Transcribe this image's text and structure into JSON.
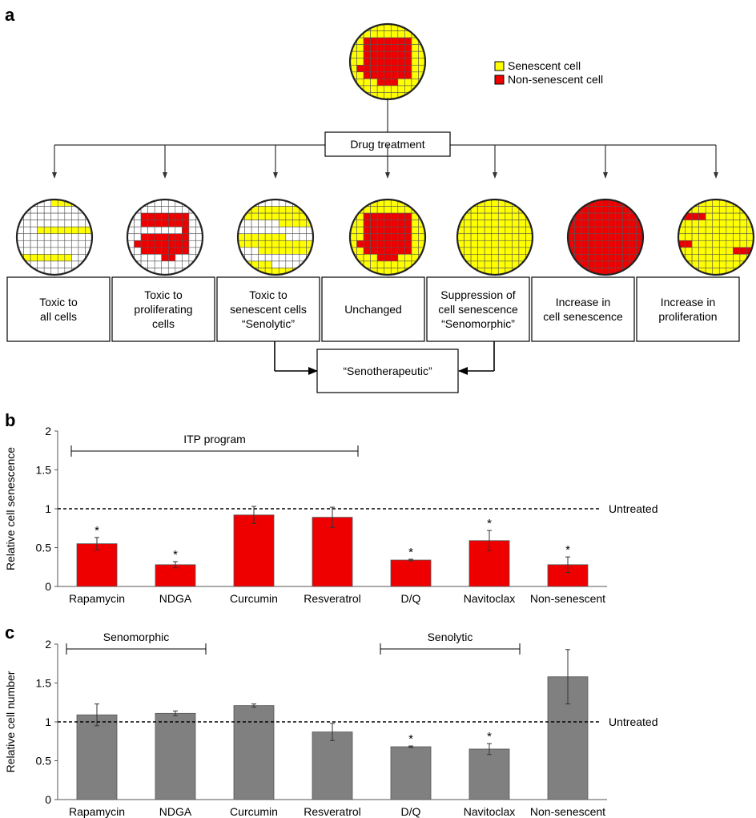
{
  "panel_a": {
    "letter": "a",
    "legend": [
      {
        "label": "Senescent cell",
        "color": "#ffff00"
      },
      {
        "label": "Non-senescent cell",
        "color": "#ee0000"
      }
    ],
    "drug_treatment": "Drug treatment",
    "outcomes": [
      {
        "lines": [
          "Toxic to",
          "all cells"
        ]
      },
      {
        "lines": [
          "Toxic to",
          "proliferating",
          "cells"
        ]
      },
      {
        "lines": [
          "Toxic to",
          "senescent cells",
          "“Senolytic”"
        ]
      },
      {
        "lines": [
          "Unchanged"
        ]
      },
      {
        "lines": [
          "Suppression of",
          "cell senescence",
          "“Senomorphic”"
        ]
      },
      {
        "lines": [
          "Increase in",
          "cell senescence"
        ]
      },
      {
        "lines": [
          "Increase in",
          "proliferation"
        ]
      }
    ],
    "senotherapeutic": "“Senotherapeutic”",
    "colors": {
      "senescent": "#ffff00",
      "nonsenescent": "#ee0000",
      "empty": "#ffffff"
    }
  },
  "chart_data": [
    {
      "type": "bar",
      "panel": "b",
      "ylabel": "Relative cell senescence",
      "ylim": [
        0,
        2
      ],
      "yticks": [
        "0",
        "0.5",
        "1",
        "1.5",
        "2"
      ],
      "categories": [
        "Rapamycin",
        "NDGA",
        "Curcumin",
        "Resveratrol",
        "D/Q",
        "Navitoclax",
        "Non-senescent"
      ],
      "values": [
        0.55,
        0.28,
        0.92,
        0.89,
        0.34,
        0.59,
        0.28
      ],
      "errors": [
        0.08,
        0.04,
        0.11,
        0.13,
        0.01,
        0.13,
        0.1
      ],
      "significant": [
        "*",
        "*",
        "",
        "",
        "*",
        "*",
        "*"
      ],
      "bar_color": "#ee0000",
      "reference_line": {
        "value": 1,
        "label": "Untreated"
      },
      "brackets": [
        {
          "label": "ITP program",
          "from": 0,
          "to": 3
        }
      ]
    },
    {
      "type": "bar",
      "panel": "c",
      "ylabel": "Relative cell number",
      "ylim": [
        0,
        2
      ],
      "yticks": [
        "0",
        "0.5",
        "1",
        "1.5",
        "2"
      ],
      "categories": [
        "Rapamycin",
        "NDGA",
        "Curcumin",
        "Resveratrol",
        "D/Q",
        "Navitoclax",
        "Non-senescent"
      ],
      "values": [
        1.09,
        1.11,
        1.21,
        0.87,
        0.68,
        0.65,
        1.58
      ],
      "errors": [
        0.14,
        0.03,
        0.02,
        0.11,
        0.01,
        0.07,
        0.35
      ],
      "significant": [
        "",
        "",
        "",
        "",
        "*",
        "*",
        ""
      ],
      "bar_color": "#808080",
      "reference_line": {
        "value": 1,
        "label": "Untreated"
      },
      "brackets": [
        {
          "label": "Senomorphic",
          "from": 0,
          "to": 1
        },
        {
          "label": "Senolytic",
          "from": 4,
          "to": 5
        }
      ]
    }
  ]
}
